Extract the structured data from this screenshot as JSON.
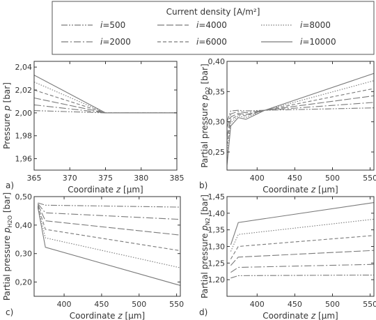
{
  "legend": {
    "title": "Current density [A/m²]",
    "entries": [
      {
        "prefix": "i",
        "label": "=500",
        "dash": "9,2,2,2,2,2"
      },
      {
        "prefix": "i",
        "label": "=4000",
        "dash": "10,3"
      },
      {
        "prefix": "i",
        "label": "=8000",
        "dash": "1.5,2"
      },
      {
        "prefix": "i",
        "label": "=2000",
        "dash": "10,3,2,3"
      },
      {
        "prefix": "i",
        "label": "=6000",
        "dash": "5,3"
      },
      {
        "prefix": "i",
        "label": "=10000",
        "dash": ""
      }
    ]
  },
  "colors": {
    "line": "#7a7a7a",
    "axis": "#333333",
    "frame": "#555555"
  },
  "chart_data": [
    {
      "panel": "a)",
      "type": "line",
      "xlabel": "Coordinate z [µm]",
      "ylabel": "Pressure p [bar]",
      "xlim": [
        365,
        385
      ],
      "ylim": [
        1.95,
        2.045
      ],
      "xticks": [
        365,
        370,
        375,
        380,
        385
      ],
      "xtick_labels": [
        "365",
        "370",
        "375",
        "380",
        "385"
      ],
      "yticks": [
        1.96,
        1.98,
        2.0,
        2.02,
        2.04
      ],
      "ytick_labels": [
        "1,96",
        "1,98",
        "2,00",
        "2,02",
        "2,04"
      ],
      "series": [
        {
          "points": [
            [
              365,
              2.002
            ],
            [
              375,
              2.0
            ],
            [
              385,
              2.0
            ]
          ]
        },
        {
          "points": [
            [
              365,
              2.007
            ],
            [
              375,
              2.0
            ],
            [
              385,
              2.0
            ]
          ]
        },
        {
          "points": [
            [
              365,
              2.013
            ],
            [
              375,
              2.0
            ],
            [
              385,
              2.0
            ]
          ]
        },
        {
          "points": [
            [
              365,
              2.02
            ],
            [
              375,
              2.0
            ],
            [
              385,
              2.0
            ]
          ]
        },
        {
          "points": [
            [
              365,
              2.027
            ],
            [
              375,
              2.0
            ],
            [
              385,
              2.0
            ]
          ]
        },
        {
          "points": [
            [
              365,
              2.033
            ],
            [
              375,
              2.0
            ],
            [
              385,
              2.0
            ]
          ]
        }
      ]
    },
    {
      "panel": "b)",
      "type": "line",
      "xlabel": "Coordinate z [µm]",
      "ylabel": "Partial pressure p_O2 [bar]",
      "xlim": [
        360,
        555
      ],
      "ylim": [
        0.22,
        0.4
      ],
      "xticks": [
        400,
        450,
        500,
        550
      ],
      "xtick_labels": [
        "400",
        "450",
        "500",
        "550"
      ],
      "yticks": [
        0.25,
        0.3,
        0.35,
        0.4
      ],
      "ytick_labels": [
        "0,25",
        "0,30",
        "0,35",
        "0,40"
      ],
      "series": [
        {
          "points": [
            [
              360,
              0.3
            ],
            [
              365,
              0.318
            ],
            [
              375,
              0.319
            ],
            [
              385,
              0.318
            ],
            [
              410,
              0.319
            ],
            [
              555,
              0.323
            ]
          ]
        },
        {
          "points": [
            [
              360,
              0.29
            ],
            [
              365,
              0.313
            ],
            [
              375,
              0.317
            ],
            [
              385,
              0.315
            ],
            [
              410,
              0.319
            ],
            [
              555,
              0.332
            ]
          ]
        },
        {
          "points": [
            [
              360,
              0.275
            ],
            [
              365,
              0.308
            ],
            [
              375,
              0.314
            ],
            [
              385,
              0.312
            ],
            [
              410,
              0.319
            ],
            [
              555,
              0.343
            ]
          ]
        },
        {
          "points": [
            [
              360,
              0.262
            ],
            [
              365,
              0.303
            ],
            [
              375,
              0.312
            ],
            [
              385,
              0.31
            ],
            [
              410,
              0.319
            ],
            [
              555,
              0.355
            ]
          ]
        },
        {
          "points": [
            [
              360,
              0.248
            ],
            [
              365,
              0.298
            ],
            [
              375,
              0.31
            ],
            [
              385,
              0.307
            ],
            [
              410,
              0.319
            ],
            [
              555,
              0.368
            ]
          ]
        },
        {
          "points": [
            [
              360,
              0.228
            ],
            [
              365,
              0.293
            ],
            [
              375,
              0.307
            ],
            [
              385,
              0.304
            ],
            [
              410,
              0.319
            ],
            [
              555,
              0.38
            ]
          ]
        }
      ]
    },
    {
      "panel": "c)",
      "type": "line",
      "xlabel": "Coordinate z [µm]",
      "ylabel": "Partial pressure p_H2O [bar]",
      "xlim": [
        360,
        555
      ],
      "ylim": [
        0.15,
        0.5
      ],
      "xticks": [
        400,
        450,
        500,
        550
      ],
      "xtick_labels": [
        "400",
        "450",
        "500",
        "550"
      ],
      "yticks": [
        0.2,
        0.3,
        0.4,
        0.5
      ],
      "ytick_labels": [
        "0,20",
        "0,30",
        "0,40",
        "0,50"
      ],
      "series": [
        {
          "points": [
            [
              365,
              0.478
            ],
            [
              375,
              0.47
            ],
            [
              555,
              0.463
            ]
          ]
        },
        {
          "points": [
            [
              365,
              0.475
            ],
            [
              375,
              0.443
            ],
            [
              555,
              0.42
            ]
          ]
        },
        {
          "points": [
            [
              365,
              0.472
            ],
            [
              375,
              0.415
            ],
            [
              555,
              0.365
            ]
          ]
        },
        {
          "points": [
            [
              365,
              0.468
            ],
            [
              375,
              0.385
            ],
            [
              555,
              0.31
            ]
          ]
        },
        {
          "points": [
            [
              365,
              0.465
            ],
            [
              375,
              0.355
            ],
            [
              555,
              0.25
            ]
          ]
        },
        {
          "points": [
            [
              365,
              0.462
            ],
            [
              375,
              0.322
            ],
            [
              555,
              0.188
            ]
          ]
        }
      ]
    },
    {
      "panel": "d)",
      "type": "line",
      "xlabel": "Coordinate z [µm]",
      "ylabel": "Partial pressure p_N2 [bar]",
      "xlim": [
        360,
        555
      ],
      "ylim": [
        1.15,
        1.45
      ],
      "xticks": [
        400,
        450,
        500,
        550
      ],
      "xtick_labels": [
        "400",
        "450",
        "500",
        "550"
      ],
      "yticks": [
        1.2,
        1.25,
        1.3,
        1.35,
        1.4,
        1.45
      ],
      "ytick_labels": [
        "1,20",
        "1,25",
        "1,30",
        "1,35",
        "1,40",
        "1,45"
      ],
      "series": [
        {
          "points": [
            [
              365,
              1.205
            ],
            [
              375,
              1.212
            ],
            [
              555,
              1.214
            ]
          ]
        },
        {
          "points": [
            [
              365,
              1.222
            ],
            [
              375,
              1.237
            ],
            [
              555,
              1.246
            ]
          ]
        },
        {
          "points": [
            [
              365,
              1.243
            ],
            [
              375,
              1.268
            ],
            [
              555,
              1.288
            ]
          ]
        },
        {
          "points": [
            [
              365,
              1.262
            ],
            [
              375,
              1.3
            ],
            [
              555,
              1.333
            ]
          ]
        },
        {
          "points": [
            [
              365,
              1.285
            ],
            [
              375,
              1.336
            ],
            [
              555,
              1.382
            ]
          ]
        },
        {
          "points": [
            [
              365,
              1.305
            ],
            [
              375,
              1.372
            ],
            [
              555,
              1.432
            ]
          ]
        }
      ]
    }
  ]
}
